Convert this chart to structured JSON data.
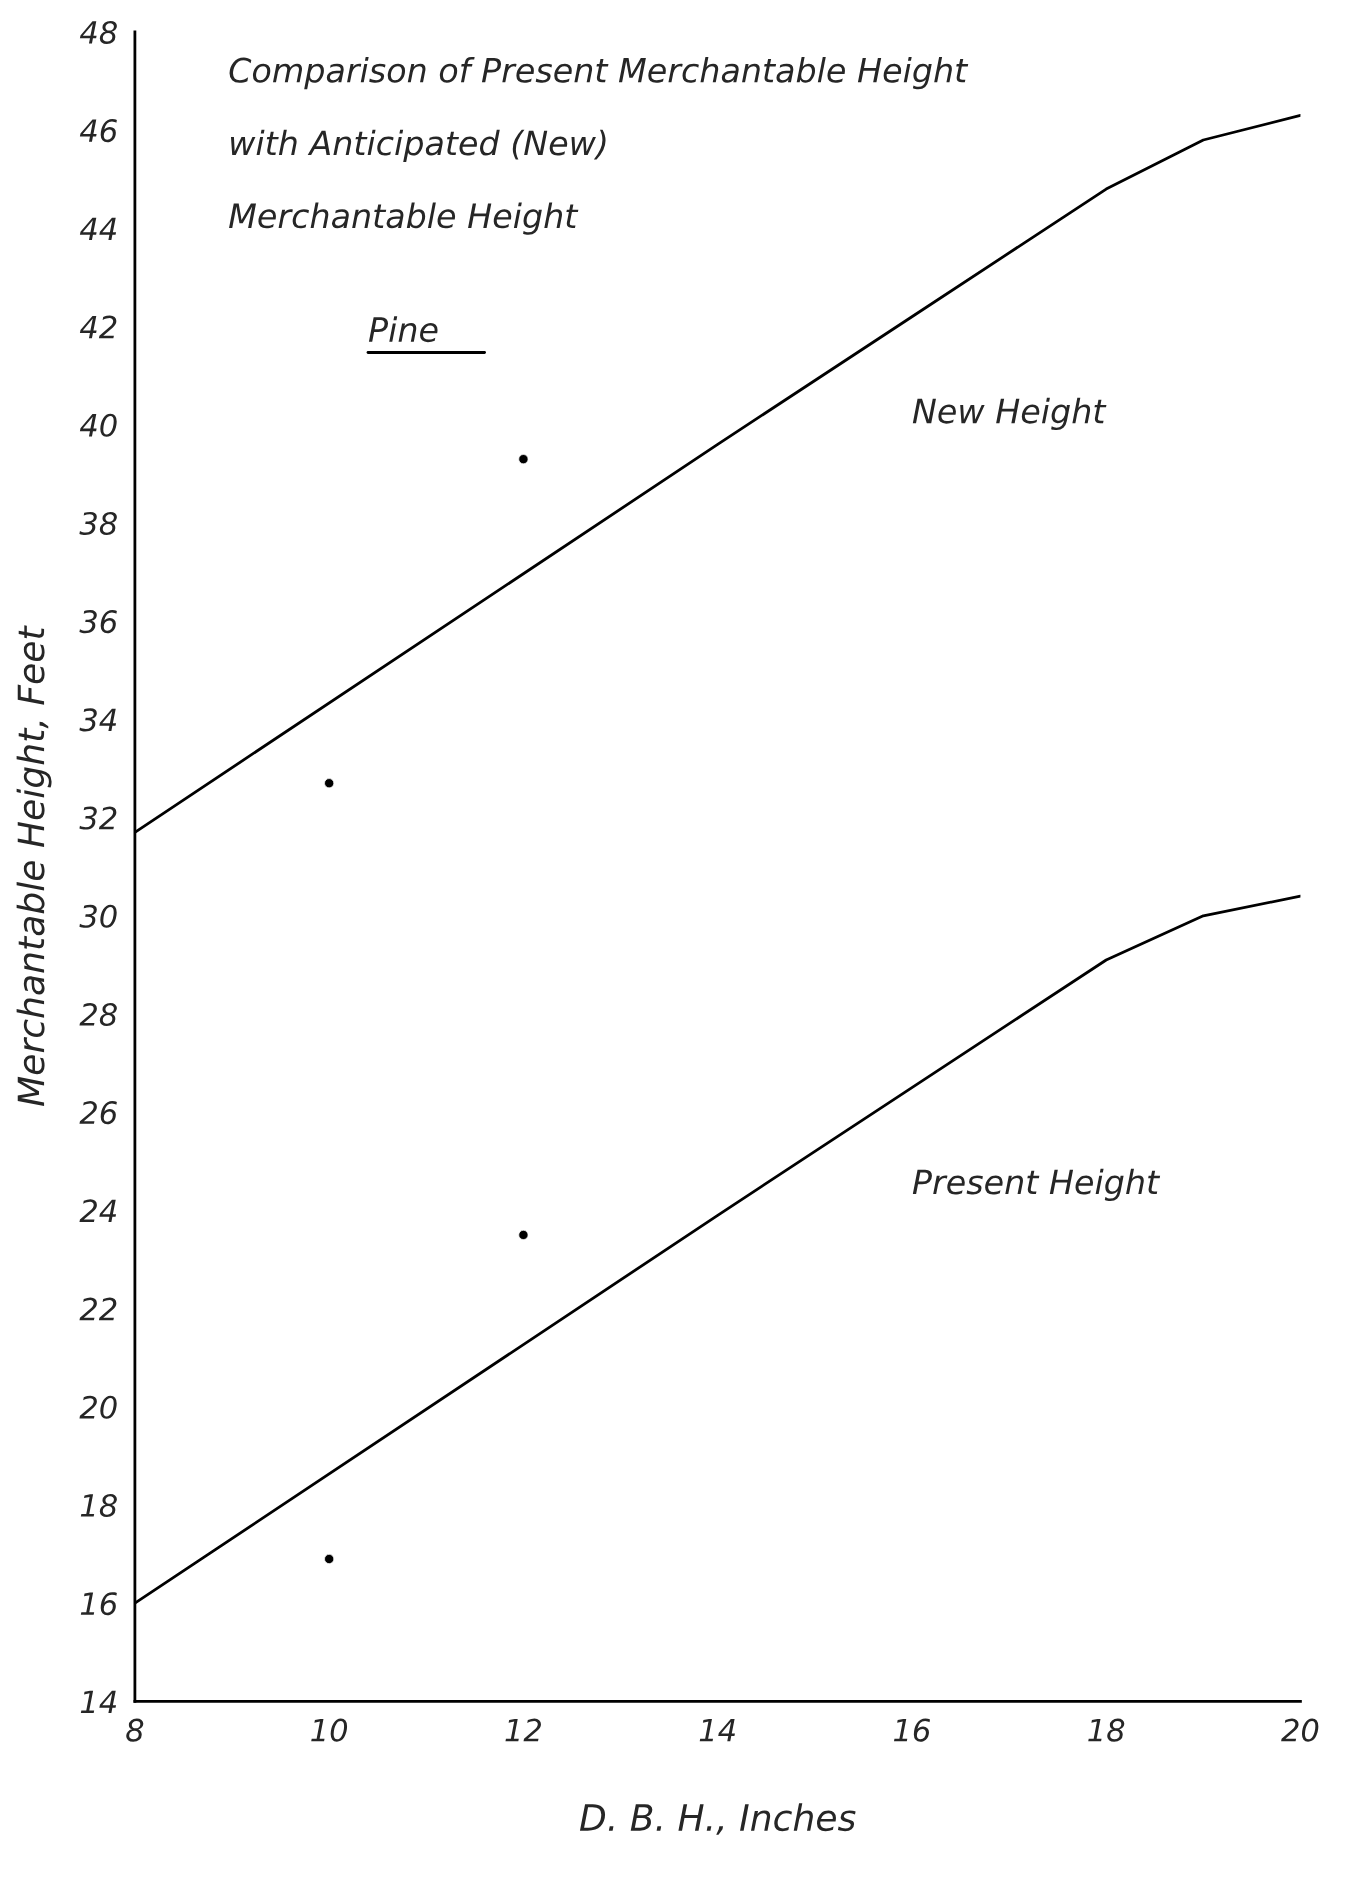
{
  "chart_data": {
    "type": "line",
    "title": "Comparison of Present Merchantable Height\nwith Anticipated (New)\nMerchantable Height",
    "subtitle": "Pine",
    "xlabel": "D. B. H., Inches",
    "ylabel": "Merchantable Height, Feet",
    "series": [
      {
        "name": "New Height",
        "color": "#000000",
        "x": [
          8,
          14,
          16,
          18,
          19,
          20
        ],
        "values": [
          31.7,
          39.6,
          42.2,
          44.8,
          45.8,
          46.3
        ]
      },
      {
        "name": "Present Height",
        "color": "#000000",
        "x": [
          8,
          14,
          16,
          18,
          19,
          20
        ],
        "values": [
          16.0,
          23.9,
          26.5,
          29.1,
          30.0,
          30.4
        ]
      },
      {
        "type": "scatter",
        "marker": "circle",
        "color": "#000000",
        "x": [
          10,
          12
        ],
        "values": [
          32.7,
          39.3
        ]
      },
      {
        "type": "scatter",
        "marker": "circle",
        "color": "#000000",
        "x": [
          10,
          12
        ],
        "values": [
          16.9,
          23.5
        ]
      }
    ],
    "xlim": [
      8,
      20
    ],
    "ylim": [
      14,
      48
    ],
    "xticks": [
      8,
      10,
      12,
      14,
      16,
      18,
      20
    ],
    "yticks": [
      14,
      16,
      18,
      20,
      22,
      24,
      26,
      28,
      30,
      32,
      34,
      36,
      38,
      40,
      42,
      44,
      46,
      48
    ],
    "grid": false,
    "legend": false,
    "marker": "none",
    "line_style": "solid"
  }
}
